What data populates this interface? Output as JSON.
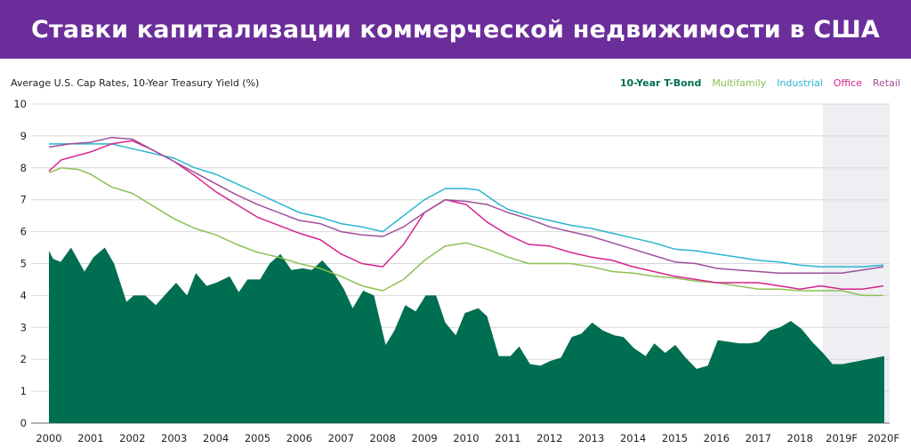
{
  "header": {
    "title": "Ставки капитализации коммерческой недвижимости в США"
  },
  "chart_data": {
    "type": "area+line",
    "title": "Ставки капитализации коммерческой недвижимости в США",
    "ylabel": "Average U.S. Cap Rates, 10-Year Treasury Yield (%)",
    "xlabel": "",
    "ylim": [
      0,
      10
    ],
    "xlim": [
      2000,
      2020
    ],
    "yticks": [
      "0",
      "1",
      "2",
      "3",
      "4",
      "5",
      "6",
      "7",
      "8",
      "9",
      "10"
    ],
    "xticks": [
      "2000",
      "2001",
      "2002",
      "2003",
      "2004",
      "2005",
      "2006",
      "2007",
      "2008",
      "2009",
      "2010",
      "2011",
      "2012",
      "2013",
      "2014",
      "2015",
      "2016",
      "2017",
      "2018",
      "2019F",
      "2020F"
    ],
    "forecast_from": 2018.55,
    "grid": true,
    "legend_position": "top-right",
    "series": [
      {
        "name": "10-Year T-Bond",
        "type": "area",
        "color": "#006e50",
        "points": [
          [
            2000.0,
            5.4
          ],
          [
            2000.1,
            5.15
          ],
          [
            2000.28,
            5.05
          ],
          [
            2000.53,
            5.5
          ],
          [
            2000.85,
            4.75
          ],
          [
            2001.07,
            5.2
          ],
          [
            2001.34,
            5.5
          ],
          [
            2001.56,
            5.0
          ],
          [
            2001.86,
            3.8
          ],
          [
            2002.03,
            4.0
          ],
          [
            2002.31,
            4.0
          ],
          [
            2002.56,
            3.7
          ],
          [
            2002.84,
            4.1
          ],
          [
            2003.05,
            4.4
          ],
          [
            2003.31,
            4.0
          ],
          [
            2003.52,
            4.7
          ],
          [
            2003.78,
            4.3
          ],
          [
            2004.01,
            4.4
          ],
          [
            2004.33,
            4.6
          ],
          [
            2004.55,
            4.1
          ],
          [
            2004.76,
            4.5
          ],
          [
            2005.06,
            4.5
          ],
          [
            2005.29,
            5.0
          ],
          [
            2005.55,
            5.3
          ],
          [
            2005.81,
            4.8
          ],
          [
            2006.08,
            4.85
          ],
          [
            2006.3,
            4.8
          ],
          [
            2006.55,
            5.1
          ],
          [
            2006.83,
            4.7
          ],
          [
            2007.07,
            4.2
          ],
          [
            2007.28,
            3.6
          ],
          [
            2007.53,
            4.15
          ],
          [
            2007.79,
            4.0
          ],
          [
            2008.07,
            2.45
          ],
          [
            2008.28,
            2.9
          ],
          [
            2008.54,
            3.7
          ],
          [
            2008.79,
            3.5
          ],
          [
            2009.03,
            4.0
          ],
          [
            2009.28,
            4.0
          ],
          [
            2009.5,
            3.15
          ],
          [
            2009.75,
            2.75
          ],
          [
            2009.97,
            3.45
          ],
          [
            2010.29,
            3.6
          ],
          [
            2010.5,
            3.35
          ],
          [
            2010.78,
            2.1
          ],
          [
            2011.06,
            2.1
          ],
          [
            2011.27,
            2.4
          ],
          [
            2011.53,
            1.85
          ],
          [
            2011.78,
            1.8
          ],
          [
            2012.02,
            1.95
          ],
          [
            2012.27,
            2.05
          ],
          [
            2012.53,
            2.7
          ],
          [
            2012.76,
            2.8
          ],
          [
            2013.02,
            3.15
          ],
          [
            2013.28,
            2.9
          ],
          [
            2013.55,
            2.75
          ],
          [
            2013.77,
            2.7
          ],
          [
            2014.02,
            2.35
          ],
          [
            2014.3,
            2.1
          ],
          [
            2014.51,
            2.5
          ],
          [
            2014.77,
            2.2
          ],
          [
            2015.01,
            2.45
          ],
          [
            2015.26,
            2.05
          ],
          [
            2015.52,
            1.7
          ],
          [
            2015.79,
            1.8
          ],
          [
            2016.03,
            2.6
          ],
          [
            2016.29,
            2.55
          ],
          [
            2016.54,
            2.5
          ],
          [
            2016.8,
            2.5
          ],
          [
            2017.01,
            2.55
          ],
          [
            2017.27,
            2.9
          ],
          [
            2017.52,
            3.0
          ],
          [
            2017.78,
            3.2
          ],
          [
            2018.04,
            2.95
          ],
          [
            2018.29,
            2.55
          ],
          [
            2018.55,
            2.2
          ],
          [
            2018.78,
            1.85
          ],
          [
            2019.02,
            1.85
          ],
          [
            2020.02,
            2.1
          ]
        ]
      },
      {
        "name": "Multifamily",
        "type": "line",
        "color": "#8cc152",
        "points": [
          [
            2000,
            7.85
          ],
          [
            2000.3,
            8.0
          ],
          [
            2000.7,
            7.95
          ],
          [
            2001,
            7.8
          ],
          [
            2001.5,
            7.4
          ],
          [
            2002,
            7.2
          ],
          [
            2002.5,
            6.8
          ],
          [
            2003,
            6.4
          ],
          [
            2003.5,
            6.1
          ],
          [
            2004,
            5.9
          ],
          [
            2004.5,
            5.6
          ],
          [
            2005,
            5.35
          ],
          [
            2005.5,
            5.2
          ],
          [
            2006,
            5.0
          ],
          [
            2006.5,
            4.85
          ],
          [
            2007,
            4.6
          ],
          [
            2007.5,
            4.3
          ],
          [
            2008,
            4.15
          ],
          [
            2008.5,
            4.5
          ],
          [
            2009,
            5.1
          ],
          [
            2009.5,
            5.55
          ],
          [
            2010,
            5.65
          ],
          [
            2010.5,
            5.45
          ],
          [
            2011,
            5.2
          ],
          [
            2011.5,
            5.0
          ],
          [
            2012,
            5.0
          ],
          [
            2012.5,
            5.0
          ],
          [
            2013,
            4.9
          ],
          [
            2013.5,
            4.75
          ],
          [
            2014,
            4.7
          ],
          [
            2014.5,
            4.6
          ],
          [
            2015,
            4.55
          ],
          [
            2015.5,
            4.45
          ],
          [
            2016,
            4.4
          ],
          [
            2016.5,
            4.3
          ],
          [
            2017,
            4.2
          ],
          [
            2017.5,
            4.2
          ],
          [
            2018,
            4.15
          ],
          [
            2018.5,
            4.15
          ],
          [
            2019,
            4.15
          ],
          [
            2019.5,
            4.0
          ],
          [
            2020,
            4.0
          ]
        ]
      },
      {
        "name": "Industrial",
        "type": "line",
        "color": "#2bb5d0",
        "points": [
          [
            2000,
            8.75
          ],
          [
            2001,
            8.75
          ],
          [
            2001.5,
            8.75
          ],
          [
            2002,
            8.6
          ],
          [
            2003,
            8.3
          ],
          [
            2003.5,
            8.0
          ],
          [
            2004,
            7.8
          ],
          [
            2004.5,
            7.5
          ],
          [
            2005,
            7.2
          ],
          [
            2005.5,
            6.9
          ],
          [
            2006,
            6.6
          ],
          [
            2006.5,
            6.45
          ],
          [
            2007,
            6.25
          ],
          [
            2007.5,
            6.15
          ],
          [
            2008,
            6.0
          ],
          [
            2008.5,
            6.5
          ],
          [
            2009,
            7.0
          ],
          [
            2009.5,
            7.35
          ],
          [
            2010,
            7.35
          ],
          [
            2010.3,
            7.3
          ],
          [
            2010.8,
            6.85
          ],
          [
            2011,
            6.7
          ],
          [
            2011.5,
            6.5
          ],
          [
            2012,
            6.35
          ],
          [
            2012.5,
            6.2
          ],
          [
            2013,
            6.1
          ],
          [
            2013.5,
            5.95
          ],
          [
            2014,
            5.8
          ],
          [
            2014.5,
            5.65
          ],
          [
            2015,
            5.45
          ],
          [
            2015.5,
            5.4
          ],
          [
            2016,
            5.3
          ],
          [
            2016.5,
            5.2
          ],
          [
            2017,
            5.1
          ],
          [
            2017.5,
            5.05
          ],
          [
            2018,
            4.95
          ],
          [
            2018.5,
            4.9
          ],
          [
            2019,
            4.9
          ],
          [
            2019.5,
            4.9
          ],
          [
            2020,
            4.95
          ]
        ]
      },
      {
        "name": "Office",
        "type": "line",
        "color": "#d6248c",
        "points": [
          [
            2000,
            7.9
          ],
          [
            2000.3,
            8.25
          ],
          [
            2001,
            8.5
          ],
          [
            2001.5,
            8.75
          ],
          [
            2002,
            8.85
          ],
          [
            2002.5,
            8.55
          ],
          [
            2003,
            8.2
          ],
          [
            2003.5,
            7.75
          ],
          [
            2004,
            7.25
          ],
          [
            2004.5,
            6.85
          ],
          [
            2005,
            6.45
          ],
          [
            2005.5,
            6.2
          ],
          [
            2006,
            5.95
          ],
          [
            2006.5,
            5.75
          ],
          [
            2007,
            5.3
          ],
          [
            2007.5,
            5.0
          ],
          [
            2008,
            4.9
          ],
          [
            2008.5,
            5.6
          ],
          [
            2009,
            6.6
          ],
          [
            2009.5,
            7.0
          ],
          [
            2010,
            6.85
          ],
          [
            2010.5,
            6.3
          ],
          [
            2011,
            5.9
          ],
          [
            2011.5,
            5.6
          ],
          [
            2012,
            5.55
          ],
          [
            2012.5,
            5.35
          ],
          [
            2013,
            5.2
          ],
          [
            2013.5,
            5.1
          ],
          [
            2014,
            4.9
          ],
          [
            2014.5,
            4.75
          ],
          [
            2015,
            4.6
          ],
          [
            2015.5,
            4.5
          ],
          [
            2016,
            4.4
          ],
          [
            2016.5,
            4.4
          ],
          [
            2017,
            4.4
          ],
          [
            2017.5,
            4.3
          ],
          [
            2018,
            4.2
          ],
          [
            2018.5,
            4.3
          ],
          [
            2019,
            4.2
          ],
          [
            2019.5,
            4.2
          ],
          [
            2020,
            4.3
          ]
        ]
      },
      {
        "name": "Retail",
        "type": "line",
        "color": "#a0519a",
        "points": [
          [
            2000,
            8.65
          ],
          [
            2000.5,
            8.75
          ],
          [
            2001,
            8.8
          ],
          [
            2001.5,
            8.95
          ],
          [
            2002,
            8.9
          ],
          [
            2002.5,
            8.55
          ],
          [
            2003,
            8.2
          ],
          [
            2003.5,
            7.85
          ],
          [
            2004,
            7.5
          ],
          [
            2004.5,
            7.15
          ],
          [
            2005,
            6.85
          ],
          [
            2005.5,
            6.6
          ],
          [
            2006,
            6.35
          ],
          [
            2006.5,
            6.25
          ],
          [
            2007,
            6.0
          ],
          [
            2007.5,
            5.9
          ],
          [
            2008,
            5.85
          ],
          [
            2008.5,
            6.15
          ],
          [
            2009,
            6.6
          ],
          [
            2009.5,
            7.0
          ],
          [
            2010,
            6.95
          ],
          [
            2010.5,
            6.85
          ],
          [
            2011,
            6.6
          ],
          [
            2011.5,
            6.4
          ],
          [
            2012,
            6.15
          ],
          [
            2012.5,
            6.0
          ],
          [
            2013,
            5.85
          ],
          [
            2013.5,
            5.65
          ],
          [
            2014,
            5.45
          ],
          [
            2014.5,
            5.25
          ],
          [
            2015,
            5.05
          ],
          [
            2015.5,
            5.0
          ],
          [
            2016,
            4.85
          ],
          [
            2016.5,
            4.8
          ],
          [
            2017,
            4.75
          ],
          [
            2017.5,
            4.7
          ],
          [
            2018,
            4.7
          ],
          [
            2018.5,
            4.7
          ],
          [
            2019,
            4.7
          ],
          [
            2019.5,
            4.8
          ],
          [
            2020,
            4.9
          ]
        ]
      }
    ]
  }
}
